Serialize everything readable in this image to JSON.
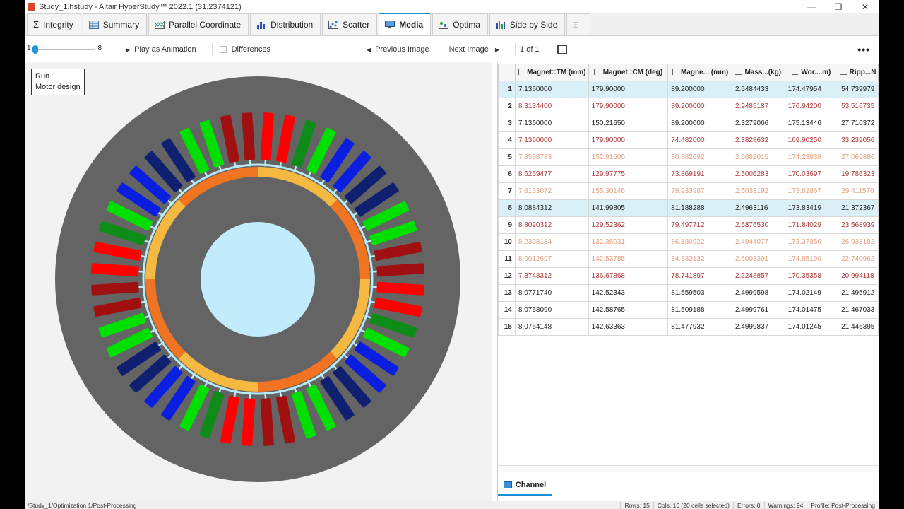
{
  "window": {
    "title": "Study_1.hstudy - Altair HyperStudy™ 2022.1 (31.2374121)",
    "min": "—",
    "max": "❐",
    "close": "✕"
  },
  "tabs": [
    {
      "label": "Integrity",
      "icon": "sigma-icon"
    },
    {
      "label": "Summary",
      "icon": "table-icon"
    },
    {
      "label": "Parallel Coordinate",
      "icon": "parallel-coordinate-icon"
    },
    {
      "label": "Distribution",
      "icon": "histogram-icon"
    },
    {
      "label": "Scatter",
      "icon": "scatter-icon"
    },
    {
      "label": "Media",
      "icon": "monitor-icon",
      "active": true
    },
    {
      "label": "Optima",
      "icon": "optima-icon"
    },
    {
      "label": "Side by Side",
      "icon": "side-by-side-icon"
    }
  ],
  "toolbar": {
    "slider_min": "1",
    "slider_max": "8",
    "slider_level": 0,
    "play": "Play as Animation",
    "differences": "Differences",
    "prev": "Previous Image",
    "next": "Next Image",
    "page": "1 of 1",
    "more": "•••"
  },
  "media": {
    "run_line1": "Run 1",
    "run_line2": "Motor design"
  },
  "table": {
    "headers": [
      "Magnet::TM (mm)",
      "Magnet::CM (deg)",
      "Magne... (mm)",
      "Mass...(kg)",
      "Wor....m)",
      "Ripp...N"
    ],
    "rows": [
      {
        "n": "1",
        "style": "hl",
        "cells": [
          "7.1360000",
          "179.90000",
          "89.200000",
          "2.5484433",
          "174.47954",
          "54.739979"
        ]
      },
      {
        "n": "2",
        "style": "red",
        "cells": [
          "8.3134400",
          "179.90000",
          "89.200000",
          "2.9485187",
          "176.94200",
          "53.516735"
        ]
      },
      {
        "n": "3",
        "style": "",
        "cells": [
          "7.1360000",
          "150.21650",
          "89.200000",
          "2.3279066",
          "175.13446",
          "27.710372"
        ]
      },
      {
        "n": "4",
        "style": "red",
        "cells": [
          "7.1360000",
          "179.90000",
          "74.482000",
          "2.3828632",
          "169.90250",
          "33.239056"
        ]
      },
      {
        "n": "5",
        "style": "fade",
        "cells": [
          "7.8588783",
          "152.91500",
          "80.882092",
          "2.5082015",
          "174.23938",
          "27.069886"
        ]
      },
      {
        "n": "6",
        "style": "red",
        "cells": [
          "8.6269477",
          "129.97775",
          "73.869191",
          "2.5006283",
          "170.03697",
          "19.786323"
        ]
      },
      {
        "n": "7",
        "style": "fade",
        "cells": [
          "7.8133072",
          "155.30146",
          "79.933987",
          "2.5033192",
          "173.82867",
          "29.411570"
        ]
      },
      {
        "n": "8",
        "style": "hl",
        "cells": [
          "8.0884312",
          "141.99805",
          "81.188288",
          "2.4963116",
          "173.83419",
          "21.372367"
        ]
      },
      {
        "n": "9",
        "style": "red",
        "cells": [
          "8.8020312",
          "129.52362",
          "79.497712",
          "2.5876530",
          "171.84029",
          "23.568939"
        ]
      },
      {
        "n": "10",
        "style": "fade",
        "cells": [
          "8.2398184",
          "132.36031",
          "86.180922",
          "2.4944077",
          "173.37856",
          "26.938182"
        ]
      },
      {
        "n": "11",
        "style": "fade",
        "cells": [
          "8.0012697",
          "142.53785",
          "84.683132",
          "2.5003391",
          "174.85190",
          "22.740962"
        ]
      },
      {
        "n": "12",
        "style": "red",
        "cells": [
          "7.3748312",
          "136.67868",
          "78.741897",
          "2.2248857",
          "170.35358",
          "20.994118"
        ]
      },
      {
        "n": "13",
        "style": "",
        "cells": [
          "8.0771740",
          "142.52343",
          "81.559503",
          "2.4999598",
          "174.02149",
          "21.495912"
        ]
      },
      {
        "n": "14",
        "style": "",
        "cells": [
          "8.0768090",
          "142.58765",
          "81.509188",
          "2.4999761",
          "174.01475",
          "21.467033"
        ]
      },
      {
        "n": "15",
        "style": "",
        "cells": [
          "8.0764148",
          "142.63363",
          "81.477932",
          "2.4999837",
          "174.01245",
          "21.446395"
        ]
      }
    ]
  },
  "bottom_tab": "Channel",
  "status": {
    "path": "/Study_1/Optimization 1/Post-Processing",
    "rows": "Rows: 15",
    "cols": "Cols: 10  (20 cells selected)",
    "errors": "Errors: 0",
    "warnings": "Warnings: 94",
    "profile": "Profile: Post-Processing"
  },
  "colors": {
    "accent": "#1b8fd6",
    "stator": "#646464",
    "rotor_core": "#646464",
    "shaft": "#c2ecfb",
    "ring_orange": "#f07421",
    "ring_yellow": "#f5b942",
    "coil_red": "#ff0000",
    "coil_darkred": "#a01010",
    "coil_green": "#00e000",
    "coil_darkgreen": "#0d8c17",
    "coil_blue": "#0a1ee0",
    "coil_navy": "#102070"
  }
}
